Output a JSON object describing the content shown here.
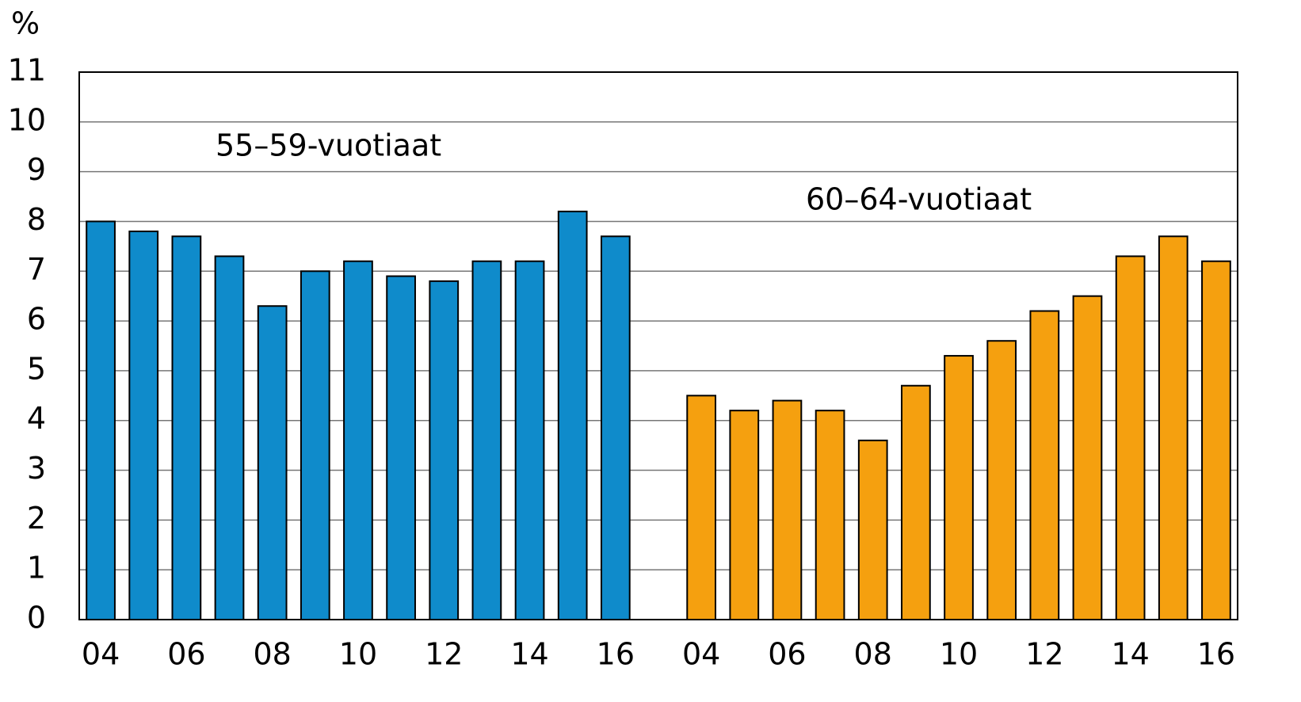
{
  "chart_data": {
    "type": "bar",
    "y_label": "%",
    "categories": [
      "04",
      null,
      "06",
      null,
      "08",
      null,
      "10",
      null,
      "12",
      null,
      "14",
      null,
      "16",
      null,
      "04",
      null,
      "06",
      null,
      "08",
      null,
      "10",
      null,
      "12",
      null,
      "14",
      null,
      "16"
    ],
    "series": [
      {
        "name": "55–59-vuotiaat",
        "color": "#0f8bcb",
        "values": [
          8.0,
          7.8,
          7.7,
          7.3,
          6.3,
          7.0,
          7.2,
          6.9,
          6.8,
          7.2,
          7.2,
          8.2,
          7.7,
          null,
          null,
          null,
          null,
          null,
          null,
          null,
          null,
          null,
          null,
          null,
          null,
          null,
          null
        ]
      },
      {
        "name": "60–64-vuotiaat",
        "color": "#f5a00f",
        "values": [
          null,
          null,
          null,
          null,
          null,
          null,
          null,
          null,
          null,
          null,
          null,
          null,
          null,
          null,
          4.5,
          4.2,
          4.4,
          4.2,
          3.6,
          4.7,
          5.3,
          5.6,
          6.2,
          6.5,
          7.3,
          7.7,
          7.2
        ]
      }
    ],
    "ylim": [
      0,
      11
    ],
    "yticks": [
      0,
      1,
      2,
      3,
      4,
      5,
      6,
      7,
      8,
      9,
      10,
      11
    ],
    "grid": true
  }
}
